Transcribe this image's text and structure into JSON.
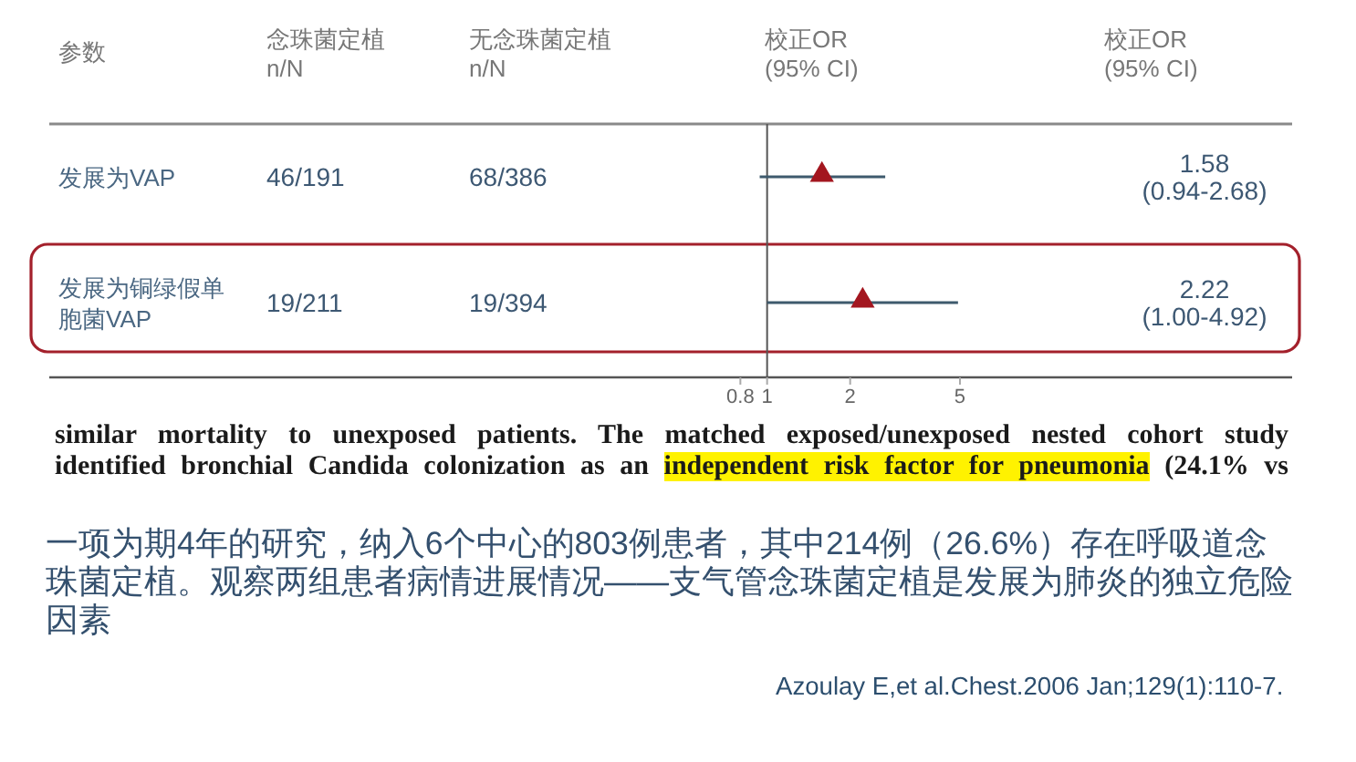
{
  "chart_data": {
    "type": "scatter",
    "orientation": "horizontal",
    "ylabel": "参数",
    "xlabel": "校正OR\n(95% CI)",
    "categories": [
      "发展为VAP",
      "发展为铜绿假单胞菌VAP"
    ],
    "values": [
      1.58,
      2.22
    ],
    "errors": [
      [
        0.94,
        2.68
      ],
      [
        1.0,
        4.92
      ]
    ],
    "color": "#a3161f",
    "marker": "triangle",
    "log": "x",
    "xlim": [
      0.0025,
      80
    ],
    "xticks": [
      0.8,
      1,
      2,
      5
    ],
    "ref_lines": [
      {
        "axis": "x",
        "value": 1,
        "color": "#555555"
      }
    ],
    "annotations": [
      "念珠菌定植\nn/N",
      "无念珠菌定植\nn/N",
      "校正OR\n(95% CI)",
      "46/191",
      "68/386",
      "1.58\n(0.94-2.68)",
      "19/211",
      "19/394",
      "2.22\n(1.00-4.92)",
      "similar mortality to unexposed patients. The matched exposed/unexposed nested cohort study",
      "identified bronchial Candida colonization as an",
      "independent risk factor for pneumonia",
      "(24.1% vs",
      "一项为期4年的研究，纳入6个中心的803例患者，其中214例（26.6%）存在呼吸道念珠菌定植。观察两组患者病情进展情况——支气管念珠菌定植是发展为肺炎的独立危险因素",
      "Azoulay E,et al.Chest.2006 Jan;129(1):110-7."
    ]
  }
}
